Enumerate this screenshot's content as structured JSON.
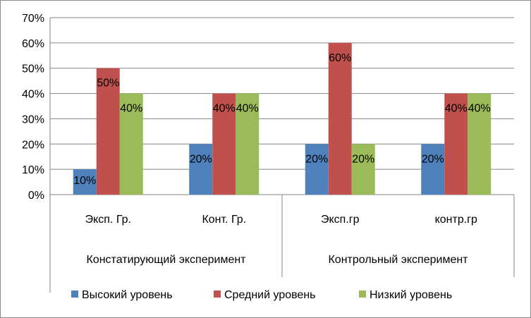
{
  "chart_data": {
    "type": "bar",
    "title": "",
    "xlabel": "",
    "ylabel": "",
    "ylim": [
      0,
      70
    ],
    "yticks": [
      0,
      10,
      20,
      30,
      40,
      50,
      60,
      70
    ],
    "ytick_suffix": "%",
    "grid": true,
    "legend_position": "bottom",
    "categories": [
      "Эксп. Гр.",
      "Конт. Гр.",
      "Эксп.гр",
      "контр.гр"
    ],
    "groups": [
      {
        "label": "Констатирующий эксперимент",
        "categories": [
          0,
          1
        ]
      },
      {
        "label": "Контрольный эксперимент",
        "categories": [
          2,
          3
        ]
      }
    ],
    "series": [
      {
        "name": "Высокий уровень",
        "color": "#4f81bd",
        "values": [
          10,
          20,
          20,
          20
        ]
      },
      {
        "name": "Средний уровень",
        "color": "#c0504d",
        "values": [
          50,
          40,
          60,
          40
        ]
      },
      {
        "name": "Низкий уровень",
        "color": "#9bbb59",
        "values": [
          40,
          40,
          20,
          40
        ]
      }
    ],
    "data_labels": [
      [
        "10%",
        "20%",
        "20%",
        "20%"
      ],
      [
        "50%",
        "40%",
        "60%",
        "40%"
      ],
      [
        "40%",
        "40%",
        "20%",
        "40%"
      ]
    ]
  }
}
